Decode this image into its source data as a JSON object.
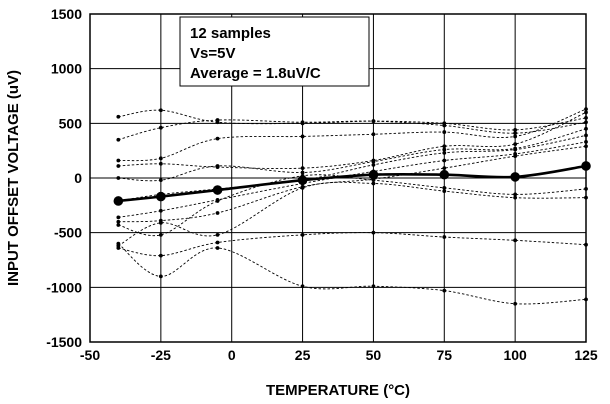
{
  "chart_data": {
    "type": "line",
    "title": "",
    "xlabel": "TEMPERATURE (°C)",
    "ylabel": "INPUT OFFSET VOLTAGE (uV)",
    "xlim": [
      -50,
      125
    ],
    "ylim": [
      -1500,
      1500
    ],
    "xticks": [
      -50,
      -25,
      0,
      25,
      50,
      75,
      100,
      125
    ],
    "yticks": [
      1500,
      1000,
      500,
      0,
      -500,
      -1000,
      -1500
    ],
    "grid": true,
    "annotation": [
      "12 samples",
      "Vs=5V",
      "Average = 1.8uV/C"
    ],
    "x": [
      -40,
      -25,
      -5,
      25,
      50,
      75,
      100,
      125
    ],
    "series": [
      {
        "values": [
          560,
          620,
          510,
          500,
          520,
          500,
          440,
          550
        ]
      },
      {
        "values": [
          350,
          460,
          530,
          510,
          520,
          480,
          410,
          510
        ]
      },
      {
        "values": [
          160,
          180,
          360,
          380,
          400,
          420,
          380,
          630
        ]
      },
      {
        "values": [
          110,
          130,
          100,
          90,
          160,
          290,
          310,
          600
        ]
      },
      {
        "values": [
          0,
          -20,
          110,
          50,
          150,
          260,
          270,
          450
        ]
      },
      {
        "values": [
          -210,
          -150,
          -100,
          -20,
          120,
          230,
          260,
          390
        ]
      },
      {
        "values": [
          -360,
          -300,
          -200,
          -50,
          60,
          160,
          220,
          330
        ]
      },
      {
        "values": [
          -400,
          -390,
          -320,
          -80,
          -10,
          90,
          200,
          290
        ]
      },
      {
        "values": [
          -430,
          -520,
          -210,
          20,
          -20,
          -90,
          -150,
          -100
        ]
      },
      {
        "values": [
          -620,
          -410,
          -520,
          -90,
          -50,
          -120,
          -180,
          -180
        ]
      },
      {
        "values": [
          -640,
          -710,
          -590,
          -520,
          -500,
          -540,
          -570,
          -610
        ]
      },
      {
        "values": [
          -600,
          -900,
          -640,
          -990,
          -990,
          -1030,
          -1150,
          -1110
        ]
      }
    ],
    "average": {
      "name": "Average",
      "values": [
        -210,
        -170,
        -110,
        -20,
        30,
        30,
        10,
        110
      ]
    }
  }
}
